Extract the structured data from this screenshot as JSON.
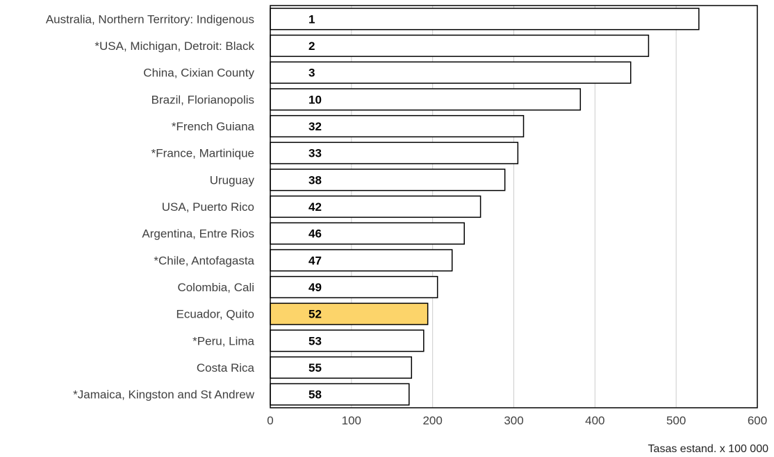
{
  "chart_data": {
    "type": "bar",
    "orientation": "horizontal",
    "categories": [
      "Australia, Northern Territory: Indigenous",
      "*USA, Michigan, Detroit: Black",
      "China, Cixian County",
      "Brazil, Florianopolis",
      "*French Guiana",
      "*France, Martinique",
      "Uruguay",
      "USA, Puerto Rico",
      "Argentina, Entre Rios",
      "*Chile, Antofagasta",
      "Colombia, Cali",
      "Ecuador, Quito",
      "*Peru, Lima",
      "Costa Rica",
      "*Jamaica, Kingston and St Andrew"
    ],
    "values": [
      528,
      466,
      444,
      382,
      312,
      305,
      289,
      259,
      239,
      224,
      206,
      194,
      189,
      174,
      171
    ],
    "bar_labels": [
      "1",
      "2",
      "3",
      "10",
      "32",
      "33",
      "38",
      "42",
      "46",
      "47",
      "49",
      "52",
      "53",
      "55",
      "58"
    ],
    "highlight_index": 11,
    "title": "",
    "xlabel": "Tasas estand. x 100 000",
    "ylabel": "",
    "xlim": [
      0,
      600
    ],
    "xticks": [
      0,
      100,
      200,
      300,
      400,
      500,
      600
    ],
    "grid": true,
    "legend": "none",
    "colors": {
      "bar_fill": "#ffffff",
      "bar_stroke": "#000000",
      "highlight_fill": "#fcd46a",
      "grid": "#cccccc",
      "frame": "#000000"
    }
  }
}
